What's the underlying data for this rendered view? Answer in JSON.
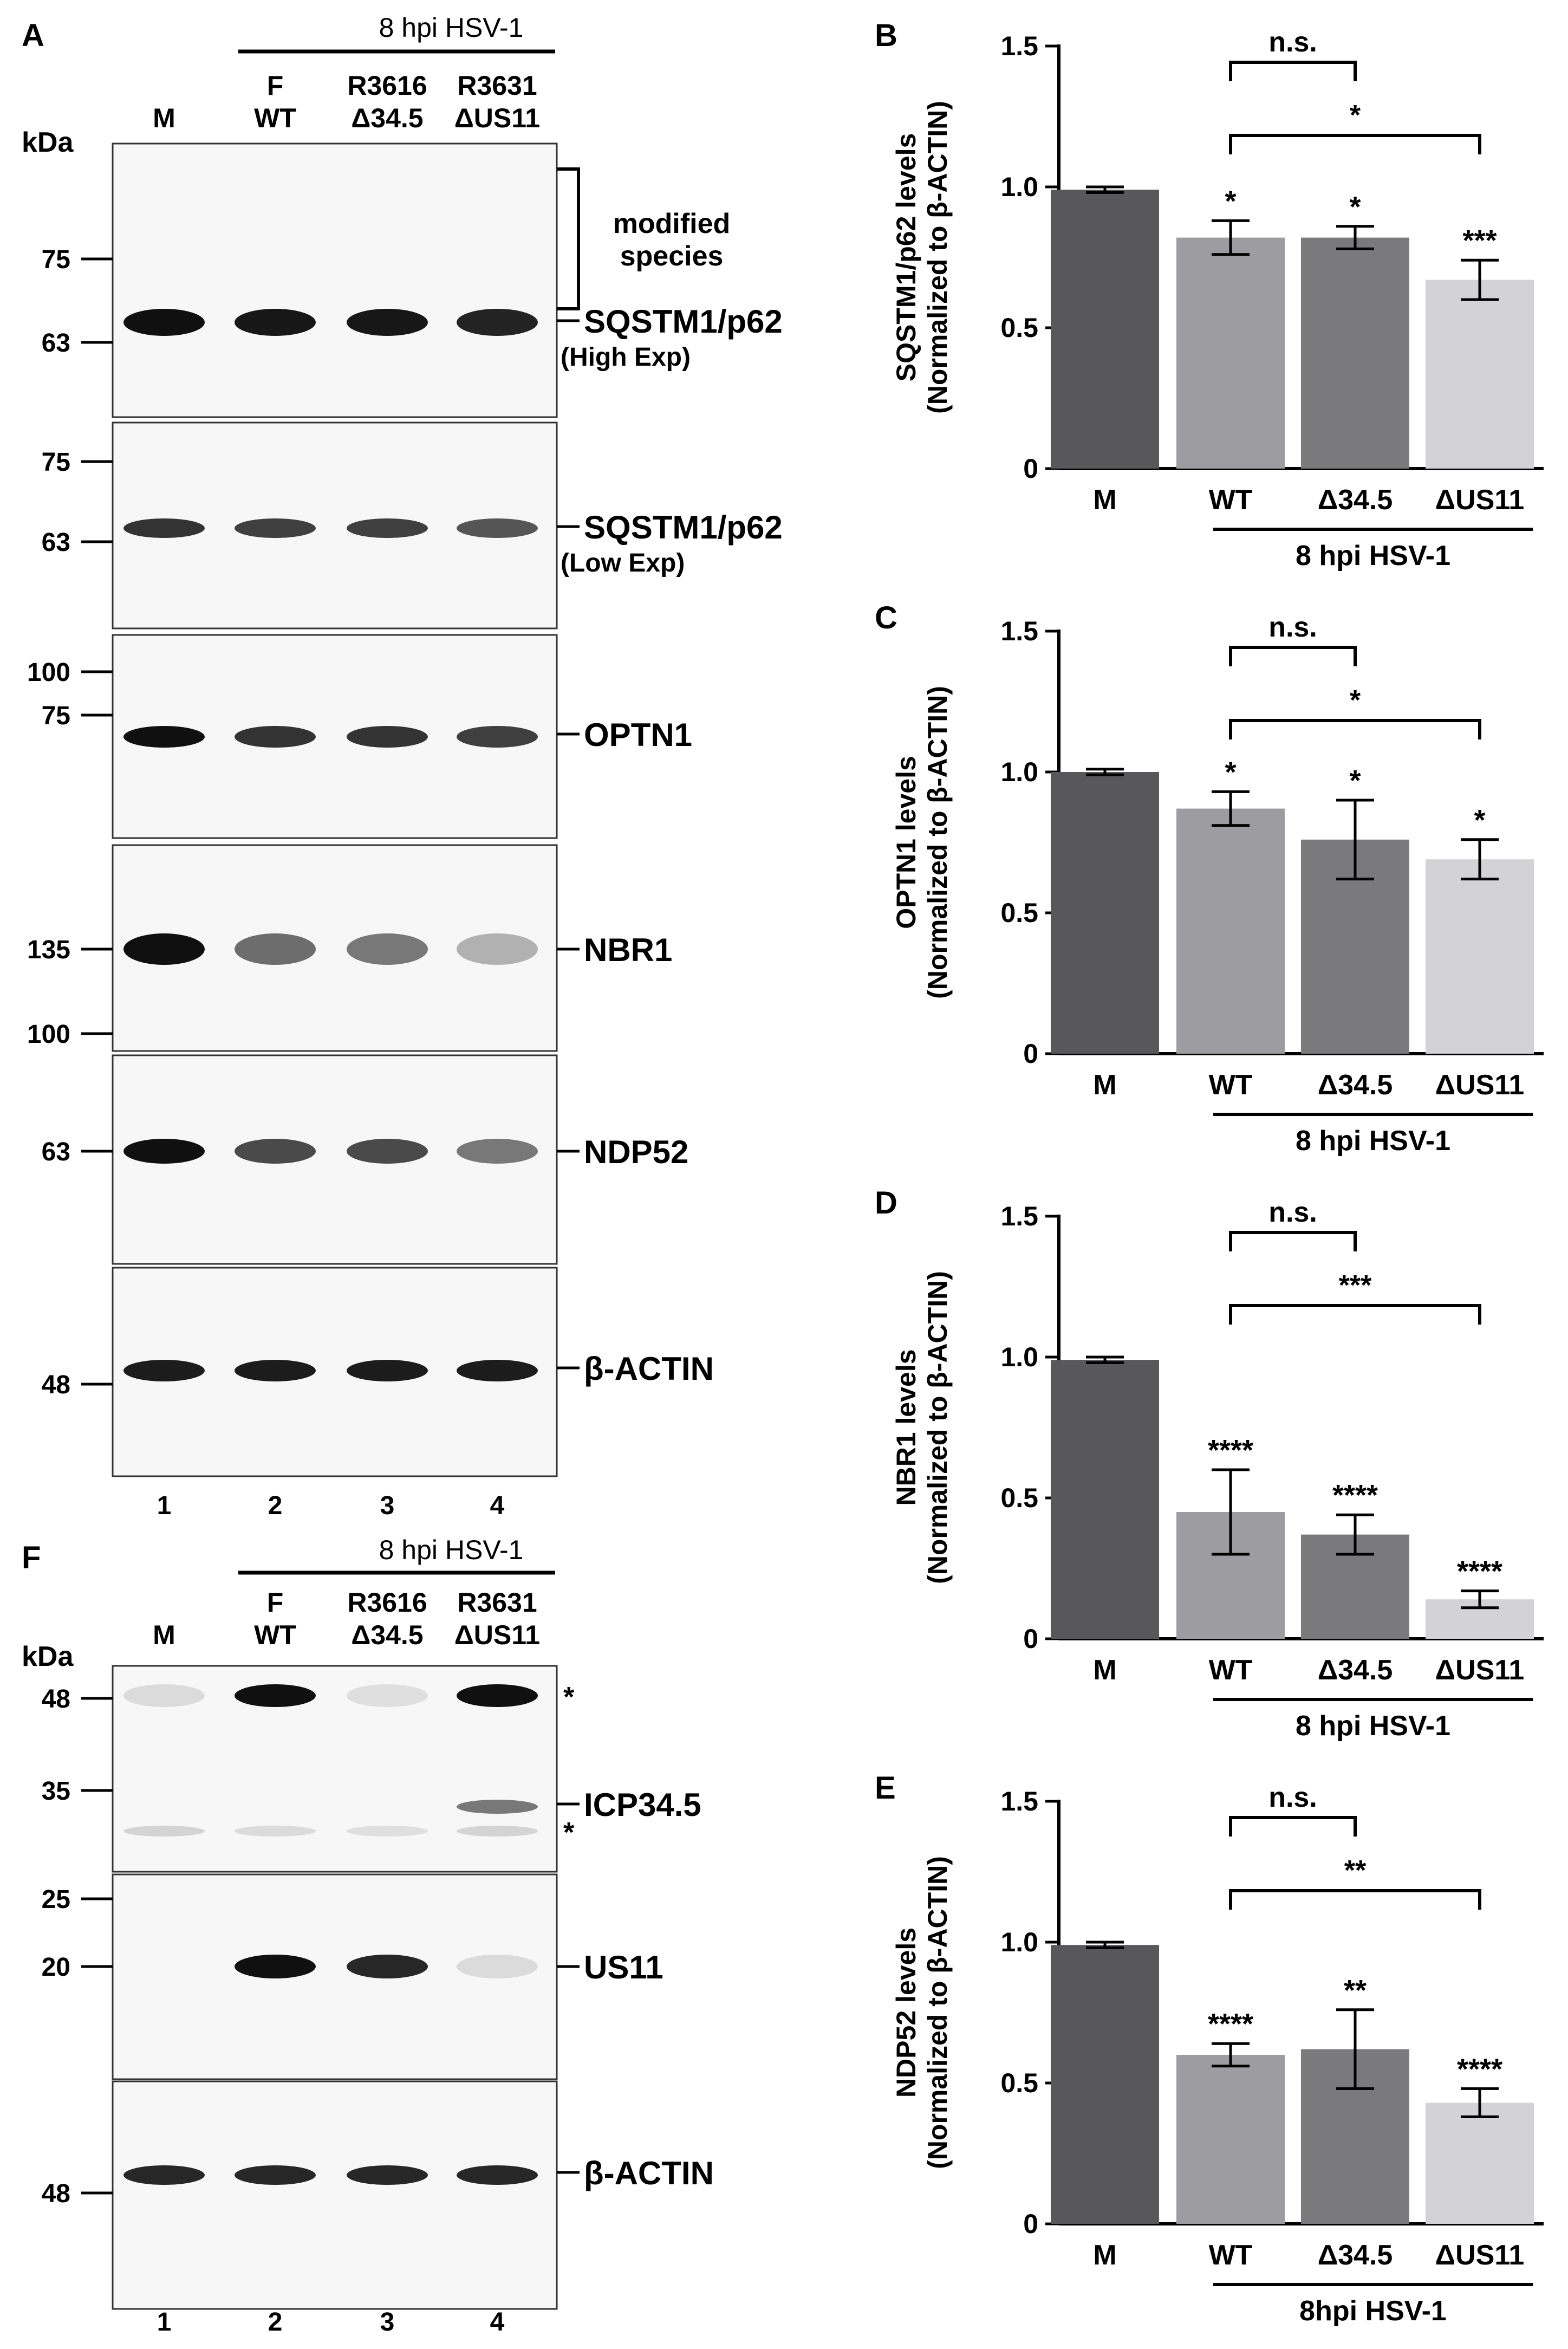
{
  "colors": {
    "bar_M": "#58585b",
    "bar_WT": "#9d9da1",
    "bar_d345": "#7a7a7c",
    "bar_dUS11": "#d3d3d5",
    "band": "#101010",
    "blot_bg": "#f7f7f7"
  },
  "panel_letters": [
    "A",
    "B",
    "C",
    "D",
    "E",
    "F"
  ],
  "blot_A": {
    "header": "8 hpi HSV-1",
    "kda_label": "kDa",
    "lane_header_top": [
      "",
      "F",
      "R3616",
      "R3631"
    ],
    "lane_header_bottom": [
      "M",
      "WT",
      "Δ34.5",
      "ΔUS11"
    ],
    "lane_numbers": [
      "1",
      "2",
      "3",
      "4"
    ],
    "modified_species": "modified\nspecies",
    "panels": [
      {
        "markers": [
          "75",
          "63"
        ],
        "label": "SQSTM1/p62",
        "sublabel": "(High Exp)",
        "intensity": [
          1.0,
          0.97,
          0.97,
          0.92
        ]
      },
      {
        "markers": [
          "75",
          "63"
        ],
        "label": "SQSTM1/p62",
        "sublabel": "(Low Exp)",
        "intensity": [
          0.85,
          0.8,
          0.8,
          0.7
        ]
      },
      {
        "markers": [
          "100",
          "75"
        ],
        "label": "OPTN1",
        "sublabel": "",
        "intensity": [
          1.0,
          0.85,
          0.85,
          0.8
        ]
      },
      {
        "markers": [
          "135",
          "100"
        ],
        "label": "NBR1",
        "sublabel": "",
        "intensity": [
          1.0,
          0.6,
          0.55,
          0.3
        ]
      },
      {
        "markers": [
          "63"
        ],
        "label": "NDP52",
        "sublabel": "",
        "intensity": [
          1.0,
          0.75,
          0.75,
          0.55
        ]
      },
      {
        "markers": [
          "48"
        ],
        "label": "β-ACTIN",
        "sublabel": "",
        "intensity": [
          0.95,
          0.95,
          0.95,
          0.95
        ]
      }
    ]
  },
  "blot_F": {
    "header": "8 hpi HSV-1",
    "kda_label": "kDa",
    "lane_header_top": [
      "",
      "F",
      "R3616",
      "R3631"
    ],
    "lane_header_bottom": [
      "M",
      "WT",
      "Δ34.5",
      "ΔUS11"
    ],
    "lane_numbers": [
      "1",
      "2",
      "3",
      "4"
    ],
    "asterisk": "*",
    "panels": [
      {
        "markers": [
          "48",
          "35"
        ],
        "label": "ICP34.5"
      },
      {
        "markers": [
          "25",
          "20"
        ],
        "label": "US11"
      },
      {
        "markers": [
          "48"
        ],
        "label": "β-ACTIN"
      }
    ]
  },
  "chart_data": [
    {
      "type": "bar",
      "panel": "B",
      "ylabel": "SQSTM1/p62 levels\n(Normalized to β-ACTIN)",
      "categories": [
        "M",
        "WT",
        "Δ34.5",
        "ΔUS11"
      ],
      "group_label": "8 hpi HSV-1",
      "values": [
        0.99,
        0.82,
        0.82,
        0.67
      ],
      "errors": [
        0.01,
        0.06,
        0.04,
        0.07
      ],
      "stars": [
        "",
        "*",
        "*",
        "***"
      ],
      "ylim": [
        0,
        1.5
      ],
      "yticks": [
        "0",
        "0.5",
        "1.0",
        "1.5"
      ],
      "brackets": [
        {
          "from": 1,
          "to": 2,
          "label": "n.s."
        },
        {
          "from": 1,
          "to": 3,
          "label": "*"
        }
      ]
    },
    {
      "type": "bar",
      "panel": "C",
      "ylabel": "OPTN1 levels\n(Normalized to β-ACTIN)",
      "categories": [
        "M",
        "WT",
        "Δ34.5",
        "ΔUS11"
      ],
      "group_label": "8 hpi HSV-1",
      "values": [
        1.0,
        0.87,
        0.76,
        0.69
      ],
      "errors": [
        0.01,
        0.06,
        0.14,
        0.07
      ],
      "stars": [
        "",
        "*",
        "*",
        "*"
      ],
      "ylim": [
        0,
        1.5
      ],
      "yticks": [
        "0",
        "0.5",
        "1.0",
        "1.5"
      ],
      "brackets": [
        {
          "from": 1,
          "to": 2,
          "label": "n.s."
        },
        {
          "from": 1,
          "to": 3,
          "label": "*"
        }
      ]
    },
    {
      "type": "bar",
      "panel": "D",
      "ylabel": "NBR1 levels\n(Normalized to β-ACTIN)",
      "categories": [
        "M",
        "WT",
        "Δ34.5",
        "ΔUS11"
      ],
      "group_label": "8 hpi HSV-1",
      "values": [
        0.99,
        0.45,
        0.37,
        0.14
      ],
      "errors": [
        0.01,
        0.15,
        0.07,
        0.03
      ],
      "stars": [
        "",
        "****",
        "****",
        "****"
      ],
      "ylim": [
        0,
        1.5
      ],
      "yticks": [
        "0",
        "0.5",
        "1.0",
        "1.5"
      ],
      "brackets": [
        {
          "from": 1,
          "to": 2,
          "label": "n.s."
        },
        {
          "from": 1,
          "to": 3,
          "label": "***"
        }
      ]
    },
    {
      "type": "bar",
      "panel": "E",
      "ylabel": "NDP52 levels\n(Normalized to β-ACTIN)",
      "categories": [
        "M",
        "WT",
        "Δ34.5",
        "ΔUS11"
      ],
      "group_label": "8hpi HSV-1",
      "values": [
        0.99,
        0.6,
        0.62,
        0.43
      ],
      "errors": [
        0.01,
        0.04,
        0.14,
        0.05
      ],
      "stars": [
        "",
        "****",
        "**",
        "****"
      ],
      "ylim": [
        0,
        1.5
      ],
      "yticks": [
        "0",
        "0.5",
        "1.0",
        "1.5"
      ],
      "brackets": [
        {
          "from": 1,
          "to": 2,
          "label": "n.s."
        },
        {
          "from": 1,
          "to": 3,
          "label": "**"
        }
      ]
    }
  ]
}
